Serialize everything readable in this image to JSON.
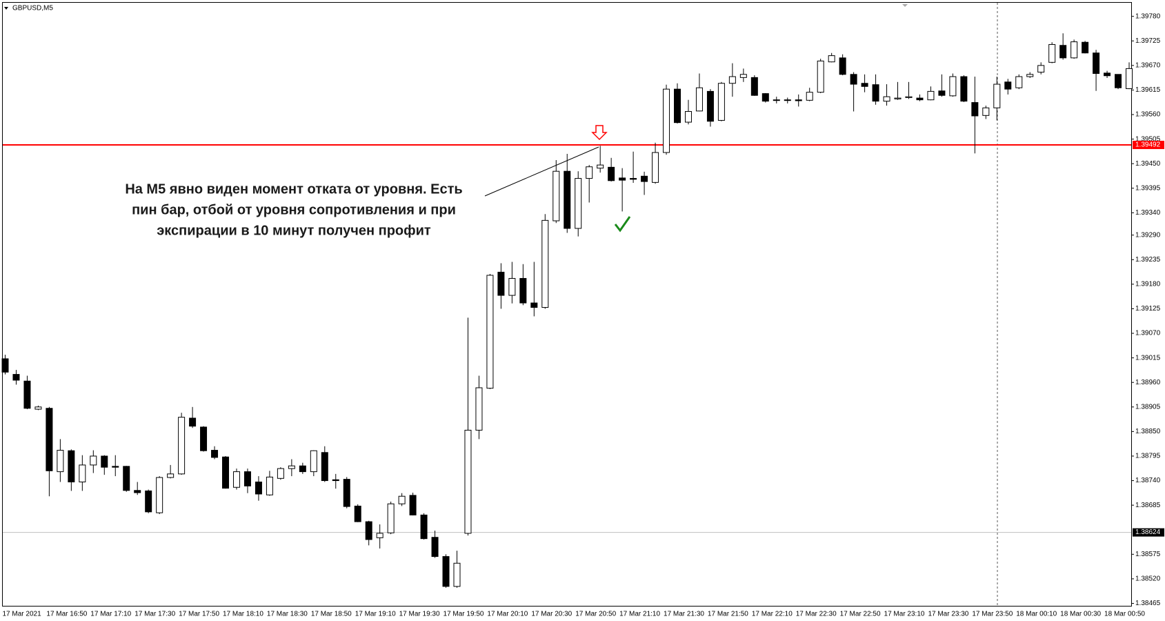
{
  "chart_data": {
    "type": "candlestick",
    "title": "GBPUSD,M5",
    "annotation": [
      "На M5 явно виден момент отката от уровня. Есть",
      "пин бар, отбой от уровня сопротивления и при",
      "экспирации в 10 минут получен профит"
    ],
    "up_color": "#ffffff",
    "down_color": "#000000",
    "grid": false,
    "categories": [
      "17 Mar 2021",
      null,
      null,
      null,
      "17 Mar 16:50",
      null,
      null,
      null,
      "17 Mar 17:10",
      null,
      null,
      null,
      "17 Mar 17:30",
      null,
      null,
      null,
      "17 Mar 17:50",
      null,
      null,
      null,
      "17 Mar 18:10",
      null,
      null,
      null,
      "17 Mar 18:30",
      null,
      null,
      null,
      "17 Mar 18:50",
      null,
      null,
      null,
      "17 Mar 19:10",
      null,
      null,
      null,
      "17 Mar 19:30",
      null,
      null,
      null,
      "17 Mar 19:50",
      null,
      null,
      null,
      "17 Mar 20:10",
      null,
      null,
      null,
      "17 Mar 20:30",
      null,
      null,
      null,
      "17 Mar 20:50",
      null,
      null,
      null,
      "17 Mar 21:10",
      null,
      null,
      null,
      "17 Mar 21:30",
      null,
      null,
      null,
      "17 Mar 21:50",
      null,
      null,
      null,
      "17 Mar 22:10",
      null,
      null,
      null,
      "17 Mar 22:30",
      null,
      null,
      null,
      "17 Mar 22:50",
      null,
      null,
      null,
      "17 Mar 23:10",
      null,
      null,
      null,
      "17 Mar 23:30",
      null,
      null,
      null,
      "17 Mar 23:50",
      null,
      null,
      null,
      "18 Mar 00:10",
      null,
      null,
      null,
      "18 Mar 00:30",
      null,
      null,
      null,
      "18 Mar 00:50",
      null,
      null
    ],
    "open": [
      1.39013,
      1.38978,
      1.38963,
      1.389,
      1.38902,
      1.3876,
      1.38807,
      1.38737,
      1.38775,
      1.38795,
      1.38772,
      1.38772,
      1.38718,
      1.38717,
      1.38668,
      1.38747,
      1.38755,
      1.3888,
      1.3886,
      1.38808,
      1.38793,
      1.38725,
      1.3876,
      1.38737,
      1.38708,
      1.38745,
      1.38767,
      1.38773,
      1.3876,
      1.38803,
      1.38742,
      1.38743,
      1.38683,
      1.38648,
      1.38612,
      1.38623,
      1.38688,
      1.38707,
      1.38663,
      1.38613,
      1.3857,
      1.38503,
      1.38622,
      1.38853,
      1.38947,
      1.39207,
      1.39155,
      1.39193,
      1.39138,
      1.39128,
      1.39322,
      1.39433,
      1.39305,
      1.39417,
      1.3944,
      1.39442,
      1.39418,
      1.39417,
      1.39422,
      1.39408,
      1.39475,
      1.39617,
      1.39543,
      1.39568,
      1.39612,
      1.39547,
      1.3963,
      1.39643,
      1.39643,
      1.39607,
      1.39593,
      1.39593,
      1.39593,
      1.39592,
      1.3961,
      1.39678,
      1.39687,
      1.3965,
      1.3963,
      1.39627,
      1.3959,
      1.39595,
      1.39598,
      1.39597,
      1.39593,
      1.39613,
      1.39602,
      1.39645,
      1.39587,
      1.39558,
      1.39575,
      1.39633,
      1.3962,
      1.39645,
      1.39655,
      1.39677,
      1.39715,
      1.39687,
      1.39722,
      1.39698,
      1.39653,
      1.3965,
      1.39618
    ],
    "high": [
      1.39022,
      1.38988,
      1.38975,
      1.38908,
      1.38905,
      1.38833,
      1.3881,
      1.38797,
      1.38808,
      1.38797,
      1.38797,
      1.38773,
      1.38737,
      1.3872,
      1.3875,
      1.38775,
      1.38892,
      1.38905,
      1.38862,
      1.38817,
      1.38795,
      1.38767,
      1.38767,
      1.3875,
      1.38762,
      1.3877,
      1.38788,
      1.3878,
      1.38808,
      1.38817,
      1.38755,
      1.38748,
      1.38687,
      1.3865,
      1.38642,
      1.38693,
      1.38712,
      1.38713,
      1.38667,
      1.38628,
      1.38575,
      1.38583,
      1.39105,
      1.38975,
      1.39203,
      1.39227,
      1.3923,
      1.39225,
      1.3923,
      1.39337,
      1.39458,
      1.39472,
      1.39433,
      1.39447,
      1.3949,
      1.39463,
      1.3944,
      1.39477,
      1.39432,
      1.39497,
      1.39627,
      1.3963,
      1.39593,
      1.39652,
      1.39617,
      1.39633,
      1.39675,
      1.39663,
      1.39648,
      1.39608,
      1.396,
      1.39598,
      1.39605,
      1.3962,
      1.39685,
      1.39698,
      1.39695,
      1.39655,
      1.3965,
      1.3965,
      1.39628,
      1.39633,
      1.39633,
      1.39605,
      1.39623,
      1.3965,
      1.39652,
      1.39648,
      1.39645,
      1.3958,
      1.39645,
      1.3964,
      1.3965,
      1.39655,
      1.39677,
      1.39722,
      1.39742,
      1.39728,
      1.39725,
      1.39705,
      1.39658,
      1.3965,
      1.39677
    ],
    "low": [
      1.38978,
      1.38955,
      1.389,
      1.38898,
      1.38705,
      1.38737,
      1.38717,
      1.38717,
      1.38757,
      1.38753,
      1.3875,
      1.38715,
      1.38708,
      1.38667,
      1.38665,
      1.38745,
      1.38753,
      1.38858,
      1.38805,
      1.38788,
      1.38722,
      1.3872,
      1.38712,
      1.38695,
      1.38706,
      1.38742,
      1.3875,
      1.38755,
      1.3875,
      1.38737,
      1.38722,
      1.38678,
      1.38647,
      1.38595,
      1.38588,
      1.3862,
      1.38683,
      1.38662,
      1.38608,
      1.38567,
      1.385,
      1.385,
      1.38617,
      1.38833,
      1.38945,
      1.39125,
      1.39137,
      1.39133,
      1.39108,
      1.39125,
      1.39317,
      1.39295,
      1.39287,
      1.39363,
      1.3943,
      1.3941,
      1.39343,
      1.39407,
      1.3938,
      1.39405,
      1.3947,
      1.3954,
      1.39538,
      1.39567,
      1.39533,
      1.39545,
      1.396,
      1.39633,
      1.39602,
      1.39587,
      1.39585,
      1.39585,
      1.39578,
      1.3959,
      1.39608,
      1.39677,
      1.39648,
      1.39567,
      1.3961,
      1.39582,
      1.3958,
      1.39593,
      1.39595,
      1.3959,
      1.39592,
      1.396,
      1.396,
      1.39588,
      1.39473,
      1.3955,
      1.39547,
      1.39605,
      1.39617,
      1.39642,
      1.3965,
      1.39675,
      1.39683,
      1.39685,
      1.39697,
      1.39613,
      1.39642,
      1.39617,
      1.39617
    ],
    "close": [
      1.38983,
      1.38965,
      1.38902,
      1.38905,
      1.38762,
      1.38808,
      1.38737,
      1.38775,
      1.38795,
      1.3877,
      1.3877,
      1.38718,
      1.38713,
      1.3867,
      1.38747,
      1.38755,
      1.38882,
      1.38862,
      1.38807,
      1.38792,
      1.38723,
      1.3876,
      1.38728,
      1.3871,
      1.38748,
      1.38767,
      1.38773,
      1.3876,
      1.38807,
      1.3874,
      1.3874,
      1.38682,
      1.38648,
      1.38608,
      1.38622,
      1.38688,
      1.38705,
      1.38663,
      1.3861,
      1.3857,
      1.38503,
      1.38555,
      1.38853,
      1.38948,
      1.392,
      1.39155,
      1.39193,
      1.39138,
      1.39128,
      1.39323,
      1.39433,
      1.39305,
      1.39417,
      1.39443,
      1.39447,
      1.39412,
      1.39413,
      1.39415,
      1.3941,
      1.39475,
      1.39617,
      1.39542,
      1.39567,
      1.3962,
      1.39545,
      1.3963,
      1.39645,
      1.3965,
      1.39603,
      1.3959,
      1.39592,
      1.39592,
      1.39591,
      1.3961,
      1.3968,
      1.39692,
      1.3965,
      1.39628,
      1.39623,
      1.3959,
      1.396,
      1.39597,
      1.396,
      1.39593,
      1.39612,
      1.39603,
      1.39645,
      1.3959,
      1.39557,
      1.39575,
      1.39628,
      1.39617,
      1.39645,
      1.3965,
      1.3967,
      1.39717,
      1.39687,
      1.39723,
      1.39698,
      1.39652,
      1.39647,
      1.3962,
      1.39663
    ],
    "ylim": [
      1.38458,
      1.39812
    ],
    "yticks": [
      1.38465,
      {
        "value": 1.3852,
        "label": "1.38520"
      },
      1.38575,
      1.38685,
      {
        "value": 1.3874,
        "label": "1.38740"
      },
      1.38795,
      {
        "value": 1.3885,
        "label": "1.38850"
      },
      1.38905,
      {
        "value": 1.3896,
        "label": "1.38960"
      },
      1.39015,
      {
        "value": 1.3907,
        "label": "1.39070"
      },
      1.39125,
      {
        "value": 1.3918,
        "label": "1.39180"
      },
      1.39235,
      {
        "value": 1.3929,
        "label": "1.39290"
      },
      {
        "value": 1.3934,
        "label": "1.39340"
      },
      1.39395,
      {
        "value": 1.3945,
        "label": "1.39450"
      },
      1.39505,
      {
        "value": 1.3956,
        "label": "1.39560"
      },
      1.39615,
      {
        "value": 1.3967,
        "label": "1.39670"
      },
      1.39725,
      {
        "value": 1.3978,
        "label": "1.39780"
      }
    ],
    "hlines": [
      {
        "value": 1.39492,
        "color": "#ff0000",
        "label_color": "#ff0000"
      },
      {
        "value": 1.38624,
        "color": "#c0c0c0",
        "label_color": "#000000"
      }
    ]
  }
}
